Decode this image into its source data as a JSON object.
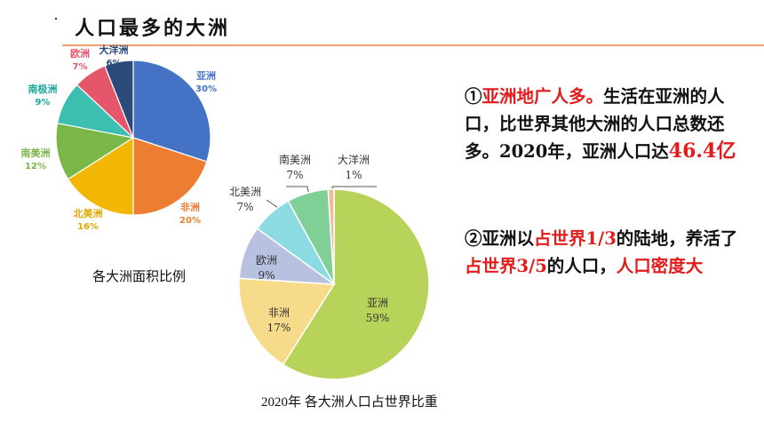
{
  "page": {
    "title": "人口最多的大洲"
  },
  "chart_data": [
    {
      "type": "pie",
      "title": "各大洲面积比例",
      "categories": [
        "亚洲",
        "非洲",
        "北美洲",
        "南美洲",
        "南极洲",
        "欧洲",
        "大洋洲"
      ],
      "values": [
        30,
        20,
        16,
        12,
        9,
        7,
        6
      ],
      "value_labels": [
        "30%",
        "20%",
        "16%",
        "12%",
        "9%",
        "7%",
        "6%"
      ],
      "colors": [
        "#4472c4",
        "#ed7d31",
        "#f2b705",
        "#7ab648",
        "#3cbfb1",
        "#e6566b",
        "#2b4a7a"
      ]
    },
    {
      "type": "pie",
      "title": "2020年 各大洲人口占世界比重",
      "categories": [
        "亚洲",
        "非洲",
        "欧洲",
        "北美洲",
        "南美洲",
        "大洋洲"
      ],
      "values": [
        59,
        17,
        9,
        7,
        7,
        1
      ],
      "value_labels": [
        "59%",
        "17%",
        "9%",
        "7%",
        "7%",
        "1%"
      ],
      "colors": [
        "#b8d35a",
        "#f6dc8a",
        "#b8c2e0",
        "#8ddbe2",
        "#7fcf96",
        "#f2b8a0"
      ]
    }
  ],
  "notes": {
    "n1_mark": "①",
    "n1_red_a": "亚洲地广人多。",
    "n1_text_a": "生活在亚洲的人口，比世界其他大洲的人口总数还多。2020年，亚洲人口达",
    "n1_red_b": "46.4亿",
    "n2_mark": "②",
    "n2_text_a": "亚洲以",
    "n2_red_a": "占世界1/3",
    "n2_text_b": "的陆地，养活了",
    "n2_red_b": "占世界3/5",
    "n2_text_c": "的人口，",
    "n2_red_c": "人口密度大"
  }
}
